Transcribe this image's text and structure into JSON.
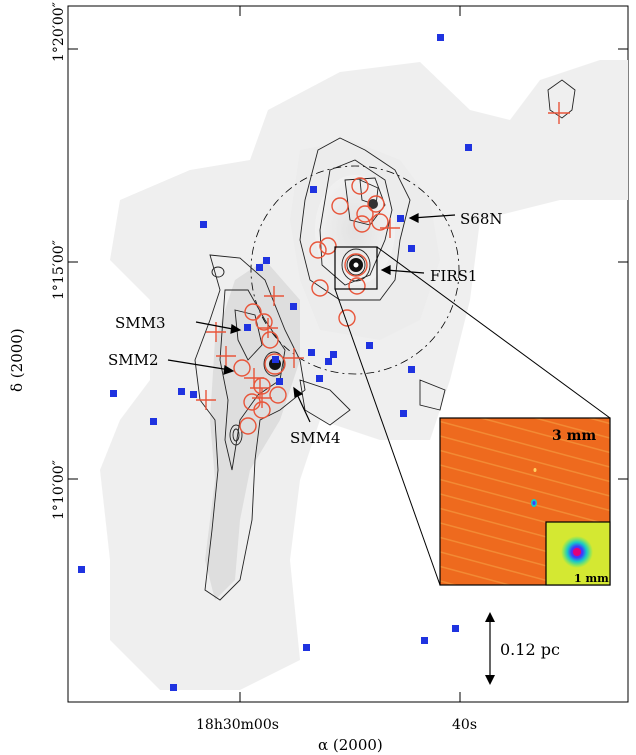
{
  "axes": {
    "ylabel": "δ (2000)",
    "xlabel": "α (2000)",
    "y_ticks": [
      "1°20′00″",
      "1°15′00″",
      "1°10′00″"
    ],
    "x_ticks": [
      "18h30m00s",
      "40s"
    ]
  },
  "labels": {
    "s68n": "S68N",
    "firs1": "FIRS1",
    "smm3": "SMM3",
    "smm2": "SMM2",
    "smm4": "SMM4"
  },
  "scale_bar": {
    "text": "0.12 pc"
  },
  "inset": {
    "title": "3 mm",
    "sub_title": "1 mm"
  },
  "colors": {
    "contour": "#222222",
    "circle": "#e8553a",
    "cross": "#e8553a",
    "blue_square": "#1f33e0",
    "inset_background": "#ee6a1e",
    "sub_inset_background": "#d4e832"
  }
}
